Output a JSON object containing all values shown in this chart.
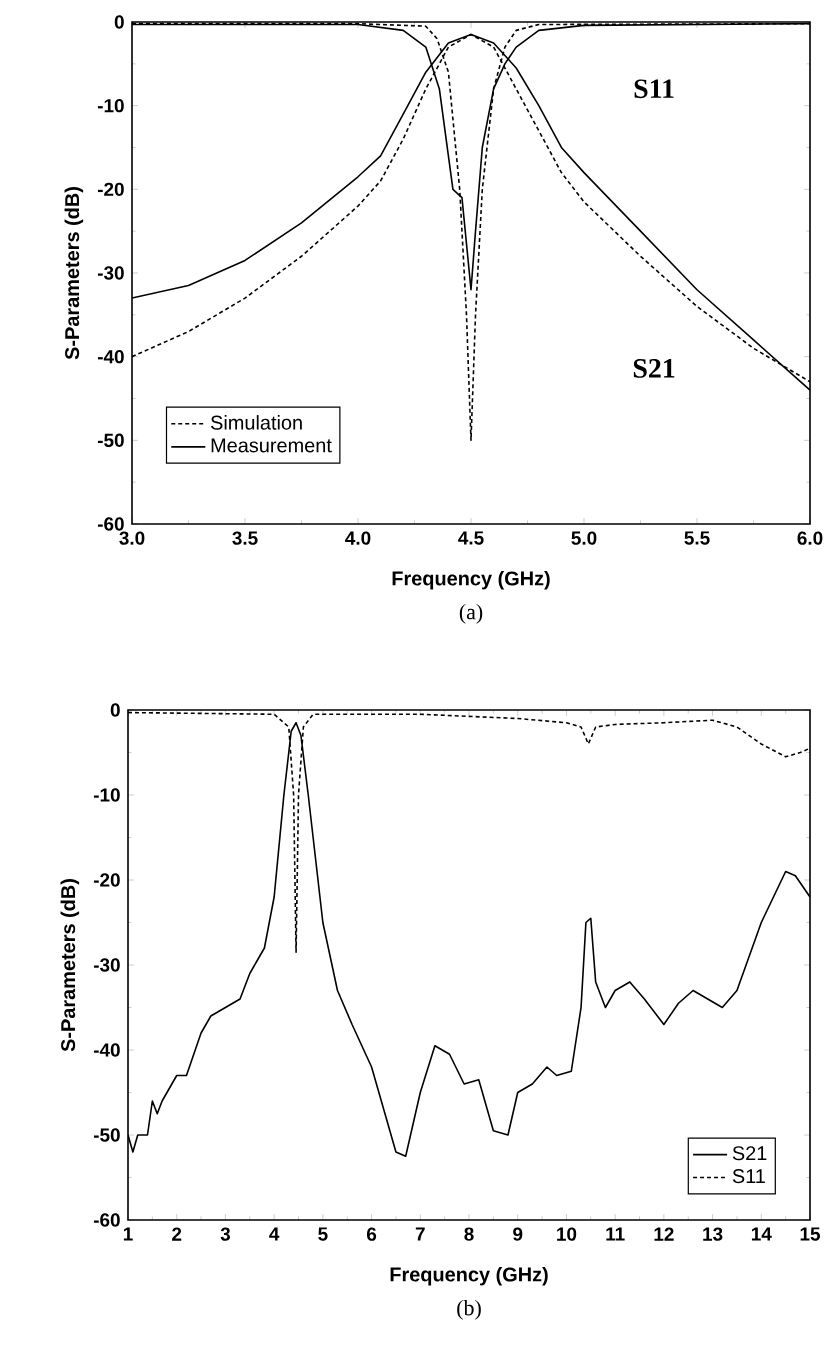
{
  "chart_data": [
    {
      "type": "line",
      "xlabel": "Frequency (GHz)",
      "ylabel": "S-Parameters (dB)",
      "xlim": [
        3,
        6
      ],
      "ylim": [
        -60,
        0
      ],
      "xticks": [
        {
          "value": 3,
          "label": "3.0"
        },
        {
          "value": 3.5,
          "label": "3.5"
        },
        {
          "value": 4,
          "label": "4.0"
        },
        {
          "value": 4.5,
          "label": "4.5"
        },
        {
          "value": 5,
          "label": "5.0"
        },
        {
          "value": 5.5,
          "label": "5.5"
        },
        {
          "value": 6,
          "label": "6.0"
        }
      ],
      "yticks": [
        -60,
        -50,
        -40,
        -30,
        -20,
        -10,
        0
      ],
      "legend": "bottom left",
      "annotations": [
        "S11",
        "S21",
        "(a)"
      ],
      "series": [
        {
          "name": "Simulation",
          "color": "#000000",
          "line_style": "dashed",
          "x": [
            3.0,
            3.25,
            3.5,
            3.75,
            4.0,
            4.1,
            4.2,
            4.3,
            4.4,
            4.5,
            4.6,
            4.7,
            4.8,
            4.9,
            5.0,
            5.25,
            5.5,
            5.75,
            6.0
          ],
          "values": [
            -40,
            -37,
            -33,
            -28,
            -22,
            -19,
            -14,
            -8,
            -3,
            -1.5,
            -3,
            -8,
            -13,
            -18,
            -21.5,
            -28,
            -34,
            -39,
            -43
          ]
        },
        {
          "name": "Measurement",
          "color": "#000000",
          "line_style": "solid",
          "x": [
            3.0,
            3.25,
            3.5,
            3.75,
            4.0,
            4.1,
            4.2,
            4.3,
            4.4,
            4.5,
            4.6,
            4.7,
            4.8,
            4.9,
            5.0,
            5.25,
            5.5,
            5.75,
            6.0
          ],
          "values": [
            -33,
            -31.5,
            -28.5,
            -24,
            -18.5,
            -16,
            -11,
            -6,
            -2.5,
            -1.5,
            -2.5,
            -5.5,
            -10,
            -15,
            -18,
            -25,
            -32,
            -38,
            -44
          ]
        },
        {
          "color": "#000000",
          "line_style": "dashed",
          "x": [
            3.0,
            4.0,
            4.3,
            4.35,
            4.4,
            4.45,
            4.48,
            4.5,
            4.52,
            4.55,
            4.6,
            4.65,
            4.7,
            4.8,
            6.0
          ],
          "values": [
            -0.2,
            -0.2,
            -0.5,
            -2,
            -6,
            -20,
            -35,
            -50,
            -35,
            -20,
            -8,
            -3,
            -1,
            -0.3,
            -0.2
          ]
        },
        {
          "color": "#000000",
          "line_style": "solid",
          "x": [
            3.0,
            4.0,
            4.2,
            4.3,
            4.36,
            4.42,
            4.46,
            4.5,
            4.52,
            4.55,
            4.6,
            4.65,
            4.7,
            4.8,
            5.0,
            6.0
          ],
          "values": [
            -0.3,
            -0.3,
            -1,
            -3,
            -8,
            -20,
            -21,
            -32,
            -25,
            -15,
            -8,
            -5,
            -3,
            -1,
            -0.4,
            -0.2
          ]
        }
      ]
    },
    {
      "type": "line",
      "xlabel": "Frequency (GHz)",
      "ylabel": "S-Parameters (dB)",
      "xlim": [
        1,
        15
      ],
      "ylim": [
        -60,
        0
      ],
      "xticks": [
        1,
        2,
        3,
        4,
        5,
        6,
        7,
        8,
        9,
        10,
        11,
        12,
        13,
        14,
        15
      ],
      "yticks": [
        -60,
        -50,
        -40,
        -30,
        -20,
        -10,
        0
      ],
      "legend": "bottom right",
      "annotations": [
        "(b)"
      ],
      "series": [
        {
          "name": "S21",
          "color": "#000000",
          "line_style": "solid",
          "x": [
            1.0,
            1.1,
            1.2,
            1.4,
            1.5,
            1.6,
            1.7,
            2.0,
            2.2,
            2.5,
            2.7,
            3.0,
            3.3,
            3.5,
            3.8,
            4.0,
            4.2,
            4.35,
            4.45,
            4.55,
            4.7,
            5.0,
            5.3,
            5.6,
            6.0,
            6.3,
            6.5,
            6.7,
            7.0,
            7.3,
            7.6,
            7.9,
            8.2,
            8.5,
            8.8,
            9.0,
            9.3,
            9.6,
            9.8,
            10.1,
            10.3,
            10.4,
            10.5,
            10.6,
            10.8,
            11.0,
            11.3,
            11.6,
            12.0,
            12.3,
            12.6,
            12.9,
            13.2,
            13.5,
            14.0,
            14.5,
            14.7,
            15.0
          ],
          "values": [
            -50,
            -52,
            -50,
            -50,
            -46,
            -47.5,
            -46,
            -43,
            -43,
            -38,
            -36,
            -35,
            -34,
            -31,
            -28,
            -22,
            -10,
            -2.5,
            -1.5,
            -3,
            -10,
            -25,
            -33,
            -37,
            -42,
            -48,
            -52,
            -52.5,
            -45,
            -39.5,
            -40.5,
            -44,
            -43.5,
            -49.5,
            -50,
            -45,
            -44,
            -42,
            -43,
            -42.5,
            -35,
            -25,
            -24.5,
            -32,
            -35,
            -33,
            -32,
            -34,
            -37,
            -34.5,
            -33,
            -34,
            -35,
            -33,
            -25,
            -19,
            -19.5,
            -22
          ]
        },
        {
          "name": "S11",
          "color": "#000000",
          "line_style": "dashed",
          "x": [
            1.0,
            4.0,
            4.3,
            4.4,
            4.45,
            4.5,
            4.6,
            4.8,
            7.0,
            9.0,
            10.0,
            10.3,
            10.45,
            10.6,
            11.0,
            12.0,
            13.0,
            13.5,
            14.0,
            14.5,
            14.8,
            15.0
          ],
          "values": [
            -0.3,
            -0.5,
            -2,
            -10,
            -28.5,
            -10,
            -2,
            -0.5,
            -0.5,
            -1,
            -1.5,
            -2,
            -4,
            -2,
            -1.7,
            -1.5,
            -1.2,
            -2,
            -4,
            -5.5,
            -5,
            -4.5
          ]
        }
      ]
    }
  ]
}
